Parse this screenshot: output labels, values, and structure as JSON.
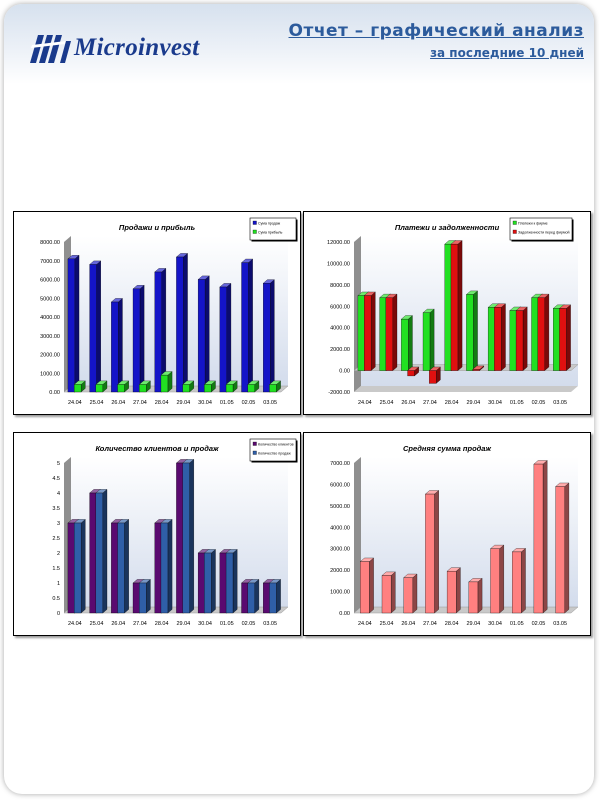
{
  "header": {
    "logo_text": "Microinvest",
    "title": "Отчет – графический анализ",
    "subtitle": "за последние 10 дней",
    "logo_color": "#1a3a8c",
    "title_color": "#2c5b9c"
  },
  "chart_data": [
    {
      "type": "bar",
      "title": "Продажи и прибыль",
      "categories": [
        "24.04",
        "25.04",
        "26.04",
        "27.04",
        "28.04",
        "29.04",
        "30.04",
        "01.05",
        "02.05",
        "03.05"
      ],
      "series": [
        {
          "name": "Сума продаж",
          "color": "#1414c8",
          "values": [
            7100,
            6800,
            4800,
            5500,
            6400,
            7200,
            6000,
            5600,
            6900,
            5800
          ]
        },
        {
          "name": "Сума прибыль",
          "color": "#22e022",
          "values": [
            400,
            400,
            400,
            400,
            900,
            400,
            400,
            400,
            400,
            400
          ]
        }
      ],
      "ylim": [
        0,
        8000
      ],
      "yticks": [
        "0.00",
        "1000.00",
        "2000.00",
        "3000.00",
        "4000.00",
        "5000.00",
        "6000.00",
        "7000.00",
        "8000.00"
      ],
      "legend": "top-right"
    },
    {
      "type": "bar",
      "title": "Платежи и задолженности",
      "categories": [
        "24.04",
        "25.04",
        "26.04",
        "27.04",
        "28.04",
        "29.04",
        "30.04",
        "01.05",
        "02.05",
        "03.05"
      ],
      "series": [
        {
          "name": "Платежи к фирме",
          "color": "#22e022",
          "values": [
            7000,
            6800,
            4800,
            5400,
            11800,
            7100,
            5900,
            5600,
            6800,
            5800
          ]
        },
        {
          "name": "Задолженности перед фирмой",
          "color": "#e01010",
          "values": [
            7000,
            6800,
            -500,
            -1200,
            11800,
            100,
            5900,
            5600,
            6800,
            5800
          ]
        }
      ],
      "ylim": [
        -2000,
        12000
      ],
      "yticks": [
        "-2000.00",
        "0.00",
        "2000.00",
        "4000.00",
        "6000.00",
        "8000.00",
        "10000.00",
        "12000.00"
      ],
      "legend": "top-left"
    },
    {
      "type": "bar",
      "title": "Количество клиентов и продаж",
      "categories": [
        "24.04",
        "25.04",
        "26.04",
        "27.04",
        "28.04",
        "29.04",
        "30.04",
        "01.05",
        "02.05",
        "03.05"
      ],
      "series": [
        {
          "name": "Количество клиентов",
          "color": "#5a0a70",
          "values": [
            3,
            4,
            3,
            1,
            3,
            5,
            2,
            2,
            1,
            1
          ]
        },
        {
          "name": "Количество продаж",
          "color": "#2f5fa8",
          "values": [
            3,
            4,
            3,
            1,
            3,
            5,
            2,
            2,
            1,
            1
          ]
        }
      ],
      "ylim": [
        0,
        5
      ],
      "yticks": [
        "0",
        "0.5",
        "1",
        "1.5",
        "2",
        "2.5",
        "3",
        "3.5",
        "4",
        "4.5",
        "5"
      ],
      "legend": "top-right"
    },
    {
      "type": "bar",
      "title": "Средняя сумма продаж",
      "categories": [
        "24.04",
        "25.04",
        "26.04",
        "27.04",
        "28.04",
        "29.04",
        "30.04",
        "01.05",
        "02.05",
        "03.05"
      ],
      "series": [
        {
          "color": "#ff8080",
          "values": [
            2400,
            1750,
            1650,
            5550,
            1950,
            1450,
            3000,
            2850,
            6950,
            5900
          ]
        }
      ],
      "ylim": [
        0,
        7000
      ],
      "yticks": [
        "0.00",
        "1000.00",
        "2000.00",
        "3000.00",
        "4000.00",
        "5000.00",
        "6000.00",
        "7000.00"
      ],
      "legend": "none"
    }
  ]
}
